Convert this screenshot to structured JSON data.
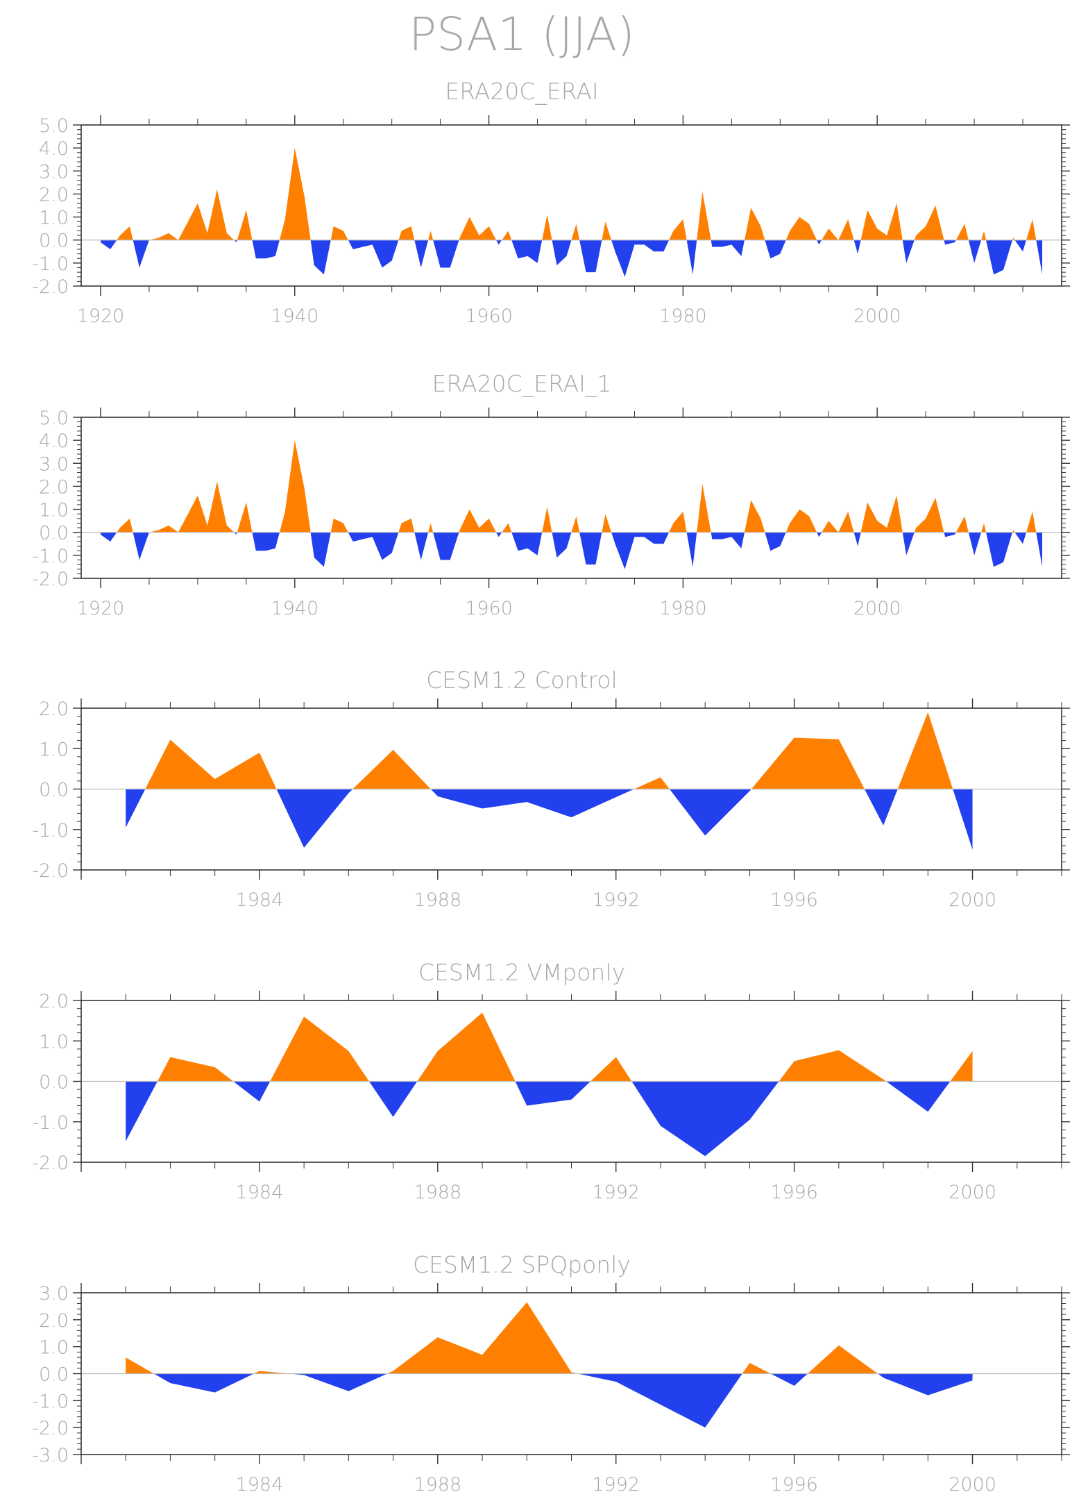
{
  "title": "PSA1 (JJA)",
  "colors": {
    "positive": "#ff8000",
    "negative": "#2340ee",
    "axis": "#333333",
    "text": "#a8a8a8",
    "zero_line": "#bbbbbb"
  },
  "chart_data": [
    {
      "type": "area",
      "title": "ERA20C_ERAI",
      "xlim": [
        1918,
        2019
      ],
      "ylim": [
        -2.0,
        5.0
      ],
      "xticks": [
        1920,
        1940,
        1960,
        1980,
        2000
      ],
      "yticks": [
        "5.0",
        "4.0",
        "3.0",
        "2.0",
        "1.0",
        "0.0",
        "-1.0",
        "-2.0"
      ],
      "x_start": 1920,
      "values": [
        -0.1,
        -0.4,
        0.2,
        0.6,
        -1.2,
        0,
        0.1,
        0.3,
        0,
        0.8,
        1.6,
        0.3,
        2.2,
        0.3,
        -0.1,
        1.3,
        -0.8,
        -0.8,
        -0.7,
        0.9,
        4.0,
        1.9,
        -1.1,
        -1.5,
        0.6,
        0.4,
        -0.4,
        -0.3,
        -0.2,
        -1.2,
        -0.9,
        0.4,
        0.6,
        -1.2,
        0.4,
        -1.2,
        -1.2,
        0.1,
        1.0,
        0.2,
        0.6,
        -0.2,
        0.4,
        -0.8,
        -0.7,
        -1.0,
        1.1,
        -1.1,
        -0.7,
        0.7,
        -1.4,
        -1.4,
        0.8,
        -0.5,
        -1.6,
        -0.2,
        -0.2,
        -0.5,
        -0.5,
        0.4,
        0.9,
        -1.5,
        2.1,
        -0.3,
        -0.3,
        -0.2,
        -0.7,
        1.4,
        0.6,
        -0.8,
        -0.6,
        0.4,
        1.0,
        0.7,
        -0.2,
        0.5,
        0,
        0.9,
        -0.6,
        1.3,
        0.5,
        0.2,
        1.6,
        -1.0,
        0.2,
        0.6,
        1.5,
        -0.2,
        -0.1,
        0.7,
        -1.0,
        0.4,
        -1.5,
        -1.3,
        0.1,
        -0.5,
        0.9,
        -1.5
      ]
    },
    {
      "type": "area",
      "title": "ERA20C_ERAI_1",
      "xlim": [
        1918,
        2019
      ],
      "ylim": [
        -2.0,
        5.0
      ],
      "xticks": [
        1920,
        1940,
        1960,
        1980,
        2000
      ],
      "yticks": [
        "5.0",
        "4.0",
        "3.0",
        "2.0",
        "1.0",
        "0.0",
        "-1.0",
        "-2.0"
      ],
      "x_start": 1920,
      "values": [
        -0.1,
        -0.4,
        0.2,
        0.6,
        -1.2,
        0,
        0.1,
        0.3,
        0,
        0.8,
        1.6,
        0.3,
        2.2,
        0.3,
        -0.1,
        1.3,
        -0.8,
        -0.8,
        -0.7,
        0.9,
        4.0,
        1.9,
        -1.1,
        -1.5,
        0.6,
        0.4,
        -0.4,
        -0.3,
        -0.2,
        -1.2,
        -0.9,
        0.4,
        0.6,
        -1.2,
        0.4,
        -1.2,
        -1.2,
        0.1,
        1.0,
        0.2,
        0.6,
        -0.2,
        0.4,
        -0.8,
        -0.7,
        -1.0,
        1.1,
        -1.1,
        -0.7,
        0.7,
        -1.4,
        -1.4,
        0.8,
        -0.5,
        -1.6,
        -0.2,
        -0.2,
        -0.5,
        -0.5,
        0.4,
        0.9,
        -1.5,
        2.1,
        -0.3,
        -0.3,
        -0.2,
        -0.7,
        1.4,
        0.6,
        -0.8,
        -0.6,
        0.4,
        1.0,
        0.7,
        -0.2,
        0.5,
        0,
        0.9,
        -0.6,
        1.3,
        0.5,
        0.2,
        1.6,
        -1.0,
        0.2,
        0.6,
        1.5,
        -0.2,
        -0.1,
        0.7,
        -1.0,
        0.4,
        -1.5,
        -1.3,
        0.1,
        -0.5,
        0.9,
        -1.5
      ]
    },
    {
      "type": "area",
      "title": "CESM1.2 Control",
      "xlim": [
        1980,
        2002
      ],
      "ylim": [
        -2.0,
        2.0
      ],
      "xticks": [
        1984,
        1988,
        1992,
        1996,
        2000
      ],
      "yticks": [
        "2.0",
        "1.0",
        "0.0",
        "-1.0",
        "-2.0"
      ],
      "x_start": 1981,
      "values": [
        -0.95,
        1.22,
        0.25,
        0.9,
        -1.45,
        -0.1,
        0.97,
        -0.18,
        -0.48,
        -0.32,
        -0.7,
        -0.2,
        0.29,
        -1.15,
        -0.05,
        1.27,
        1.23,
        -0.9,
        1.9,
        -1.5
      ]
    },
    {
      "type": "area",
      "title": "CESM1.2 VMponly",
      "xlim": [
        1980,
        2002
      ],
      "ylim": [
        -2.0,
        2.0
      ],
      "xticks": [
        1984,
        1988,
        1992,
        1996,
        2000
      ],
      "yticks": [
        "2.0",
        "1.0",
        "0.0",
        "-1.0",
        "-2.0"
      ],
      "x_start": 1981,
      "values": [
        -1.48,
        0.6,
        0.35,
        -0.5,
        1.6,
        0.75,
        -0.88,
        0.75,
        1.7,
        -0.6,
        -0.45,
        0.6,
        -1.1,
        -1.85,
        -0.95,
        0.5,
        0.77,
        0.05,
        -0.75,
        0.75
      ]
    },
    {
      "type": "area",
      "title": "CESM1.2 SPQponly",
      "xlim": [
        1980,
        2002
      ],
      "ylim": [
        -3.0,
        3.0
      ],
      "xticks": [
        1984,
        1988,
        1992,
        1996,
        2000
      ],
      "yticks": [
        "3.0",
        "2.0",
        "1.0",
        "0.0",
        "-1.0",
        "-2.0",
        "-3.0"
      ],
      "x_start": 1981,
      "values": [
        0.6,
        -0.35,
        -0.7,
        0.1,
        -0.05,
        -0.65,
        0.1,
        1.35,
        0.7,
        2.65,
        0.05,
        -0.3,
        -1.15,
        -2.0,
        0.4,
        -0.45,
        1.05,
        -0.15,
        -0.8,
        -0.25
      ]
    }
  ]
}
